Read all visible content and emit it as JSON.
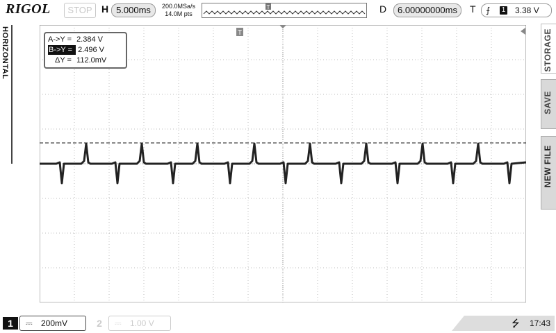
{
  "top": {
    "brand": "RIGOL",
    "run_state": "STOP",
    "timebase_label": "H",
    "timebase": "5.000ms",
    "sample_rate": "200.0MSa/s",
    "memory_depth": "14.0M pts",
    "delay_label": "D",
    "delay": "6.00000000ms",
    "trigger_label": "T",
    "trigger_source": "1",
    "trigger_level": "3.38 V"
  },
  "left_tab": {
    "label": "HORIZONTAL"
  },
  "right_menu": {
    "item1": "STORAGE",
    "item2": "SAVE",
    "item3": "NEW FILE"
  },
  "cursor": {
    "a_label": "A->Y =",
    "a_value": "2.384 V",
    "b_label": "B->Y =",
    "b_value": "2.496 V",
    "d_label": "ΔY =",
    "d_value": "112.0mV"
  },
  "bottom": {
    "ch1_num": "1",
    "ch1_coupling": "⎓",
    "ch1_scale": "200mV",
    "ch2_num": "2",
    "ch2_coupling": "⎓",
    "ch2_scale": "1.00 V",
    "usb_icon": "usb-icon",
    "clock": "17:43"
  },
  "colors": {
    "trace": "#222222",
    "grid": "#bdbdbd",
    "cursor_line": "#111111"
  }
}
